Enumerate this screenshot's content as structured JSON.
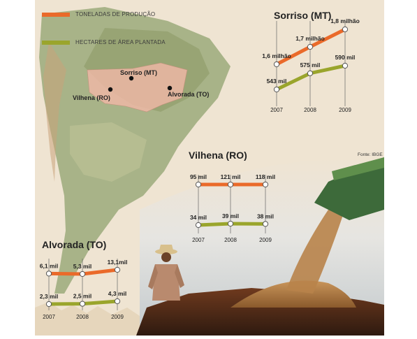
{
  "legend": [
    {
      "label": "TONELADAS DE PRODUÇÃO",
      "color": "#ea6a2a"
    },
    {
      "label": "HECTARES DE ÁREA PLANTADA",
      "color": "#9aa52c"
    }
  ],
  "map": {
    "cities": [
      "Sorriso (MT)",
      "Vilhena (RO)",
      "Alvorada (TO)"
    ]
  },
  "source": "Fonte: IBGE",
  "colors": {
    "production": "#ea6a2a",
    "area": "#9aa52c",
    "background": "#efe4d2"
  },
  "chart_data": [
    {
      "type": "line",
      "title": "Sorriso (MT)",
      "x": [
        "2007",
        "2008",
        "2009"
      ],
      "series": [
        {
          "values": [
            1.6,
            1.7,
            1.8
          ],
          "labels": [
            "1,6 milhão",
            "1,7 milhão",
            "1,8 milhão"
          ]
        },
        {
          "values": [
            543,
            575,
            590
          ],
          "labels": [
            "543 mil",
            "575 mil",
            "590 mil"
          ]
        }
      ]
    },
    {
      "type": "line",
      "title": "Vilhena (RO)",
      "x": [
        "2007",
        "2008",
        "2009"
      ],
      "series": [
        {
          "values": [
            95,
            121,
            118
          ],
          "labels": [
            "95 mil",
            "121 mil",
            "118 mil"
          ]
        },
        {
          "values": [
            34,
            39,
            38
          ],
          "labels": [
            "34 mil",
            "39 mil",
            "38 mil"
          ]
        }
      ]
    },
    {
      "type": "line",
      "title": "Alvorada (TO)",
      "x": [
        "2007",
        "2008",
        "2009"
      ],
      "series": [
        {
          "values": [
            6.1,
            5.3,
            13.1
          ],
          "labels": [
            "6,1 mil",
            "5,3 mil",
            "13,1mil"
          ]
        },
        {
          "values": [
            2.3,
            2.5,
            4.3
          ],
          "labels": [
            "2,3 mil",
            "2,5 mil",
            "4,3 mil"
          ]
        }
      ]
    }
  ]
}
